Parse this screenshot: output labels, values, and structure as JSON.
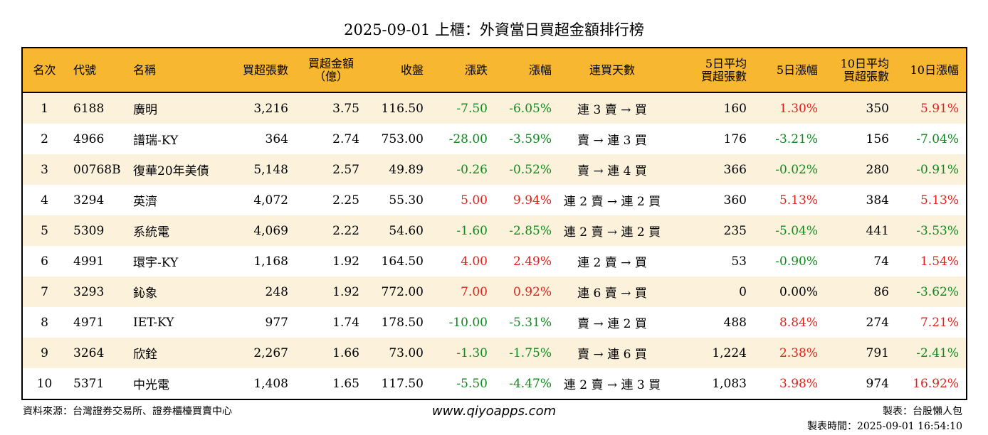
{
  "title": "2025-09-01 上櫃：外資當日買超金額排行榜",
  "headers": {
    "rank": "名次",
    "code": "代號",
    "name": "名稱",
    "buy_shares": "買超張數",
    "buy_amount_l1": "買超金額",
    "buy_amount_l2": "（億）",
    "close": "收盤",
    "change": "漲跌",
    "change_pct": "漲幅",
    "streak": "連買天數",
    "avg5_l1": "5日平均",
    "avg5_l2": "買超張數",
    "pct5": "5日漲幅",
    "avg10_l1": "10日平均",
    "avg10_l2": "買超張數",
    "pct10": "10日漲幅"
  },
  "rows": [
    {
      "rank": "1",
      "code": "6188",
      "name": "廣明",
      "buy_shares": "3,216",
      "buy_amount": "3.75",
      "close": "116.50",
      "change": "-7.50",
      "change_pct": "-6.05%",
      "streak": "連 3 賣 → 買",
      "avg5": "160",
      "pct5": "1.30%",
      "avg10": "350",
      "pct10": "5.91%"
    },
    {
      "rank": "2",
      "code": "4966",
      "name": "譜瑞-KY",
      "buy_shares": "364",
      "buy_amount": "2.74",
      "close": "753.00",
      "change": "-28.00",
      "change_pct": "-3.59%",
      "streak": "賣 → 連 3 買",
      "avg5": "176",
      "pct5": "-3.21%",
      "avg10": "156",
      "pct10": "-7.04%"
    },
    {
      "rank": "3",
      "code": "00768B",
      "name": "復華20年美債",
      "buy_shares": "5,148",
      "buy_amount": "2.57",
      "close": "49.89",
      "change": "-0.26",
      "change_pct": "-0.52%",
      "streak": "賣 → 連 4 買",
      "avg5": "366",
      "pct5": "-0.02%",
      "avg10": "280",
      "pct10": "-0.91%"
    },
    {
      "rank": "4",
      "code": "3294",
      "name": "英濟",
      "buy_shares": "4,072",
      "buy_amount": "2.25",
      "close": "55.30",
      "change": "5.00",
      "change_pct": "9.94%",
      "streak": "連 2 賣 → 連 2 買",
      "avg5": "360",
      "pct5": "5.13%",
      "avg10": "384",
      "pct10": "5.13%"
    },
    {
      "rank": "5",
      "code": "5309",
      "name": "系統電",
      "buy_shares": "4,069",
      "buy_amount": "2.22",
      "close": "54.60",
      "change": "-1.60",
      "change_pct": "-2.85%",
      "streak": "連 2 賣 → 連 2 買",
      "avg5": "235",
      "pct5": "-5.04%",
      "avg10": "441",
      "pct10": "-3.53%"
    },
    {
      "rank": "6",
      "code": "4991",
      "name": "環宇-KY",
      "buy_shares": "1,168",
      "buy_amount": "1.92",
      "close": "164.50",
      "change": "4.00",
      "change_pct": "2.49%",
      "streak": "連 2 賣 → 買",
      "avg5": "53",
      "pct5": "-0.90%",
      "avg10": "74",
      "pct10": "1.54%"
    },
    {
      "rank": "7",
      "code": "3293",
      "name": "鈊象",
      "buy_shares": "248",
      "buy_amount": "1.92",
      "close": "772.00",
      "change": "7.00",
      "change_pct": "0.92%",
      "streak": "連 6 賣 → 買",
      "avg5": "0",
      "pct5": "0.00%",
      "avg10": "86",
      "pct10": "-3.62%"
    },
    {
      "rank": "8",
      "code": "4971",
      "name": "IET-KY",
      "buy_shares": "977",
      "buy_amount": "1.74",
      "close": "178.50",
      "change": "-10.00",
      "change_pct": "-5.31%",
      "streak": "賣 → 連 2 買",
      "avg5": "488",
      "pct5": "8.84%",
      "avg10": "274",
      "pct10": "7.21%"
    },
    {
      "rank": "9",
      "code": "3264",
      "name": "欣銓",
      "buy_shares": "2,267",
      "buy_amount": "1.66",
      "close": "73.00",
      "change": "-1.30",
      "change_pct": "-1.75%",
      "streak": "賣 → 連 6 買",
      "avg5": "1,224",
      "pct5": "2.38%",
      "avg10": "791",
      "pct10": "-2.41%"
    },
    {
      "rank": "10",
      "code": "5371",
      "name": "中光電",
      "buy_shares": "1,408",
      "buy_amount": "1.65",
      "close": "117.50",
      "change": "-5.50",
      "change_pct": "-4.47%",
      "streak": "連 2 賣 → 連 3 買",
      "avg5": "1,083",
      "pct5": "3.98%",
      "avg10": "974",
      "pct10": "16.92%"
    }
  ],
  "footer": {
    "source": "資料來源：台灣證券交易所、證券櫃檯買賣中心",
    "site": "www.qiyoapps.com",
    "author": "製表：台股懶人包",
    "time": "製表時間：2025-09-01 16:54:10"
  },
  "colors": {
    "header_bg": "#f7b731",
    "stripe_bg": "#fcf2dc",
    "positive": "#e0211b",
    "negative": "#0f8a1e"
  }
}
